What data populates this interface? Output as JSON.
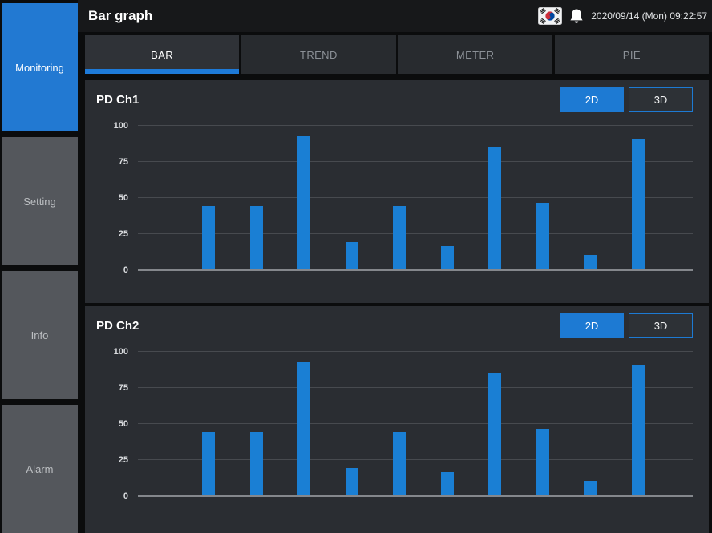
{
  "header": {
    "title": "Bar graph",
    "datetime": "2020/09/14 (Mon) 09:22:57",
    "icons": [
      "korea-flag-icon",
      "bell-icon"
    ]
  },
  "sidebar": {
    "items": [
      {
        "label": "Monitoring",
        "active": true
      },
      {
        "label": "Setting",
        "active": false
      },
      {
        "label": "Info",
        "active": false
      },
      {
        "label": "Alarm",
        "active": false
      }
    ]
  },
  "tabs": [
    {
      "label": "BAR",
      "active": true
    },
    {
      "label": "TREND",
      "active": false
    },
    {
      "label": "METER",
      "active": false
    },
    {
      "label": "PIE",
      "active": false
    }
  ],
  "colors": {
    "accent": "#1d7ad3",
    "bar": "#1a7fd4",
    "sidebar_active": "#2279d2",
    "panel_bg": "#2a2d32",
    "gridline": "#474a4f"
  },
  "chart_data": [
    {
      "type": "bar",
      "title": "PD Ch1",
      "values": [
        44,
        44,
        92,
        19,
        44,
        16,
        85,
        46,
        10,
        90
      ],
      "categories": [
        "",
        "",
        "",
        "",
        "",
        "",
        "",
        "",
        "",
        ""
      ],
      "ylim": [
        0,
        100
      ],
      "yticks": [
        100,
        75,
        50,
        25,
        0
      ],
      "grid": true,
      "legend": "none",
      "bar_color": "#1a7fd4",
      "buttons": [
        "2D",
        "3D"
      ],
      "active_button": "2D"
    },
    {
      "type": "bar",
      "title": "PD Ch2",
      "values": [
        44,
        44,
        92,
        19,
        44,
        16,
        85,
        46,
        10,
        90
      ],
      "categories": [
        "",
        "",
        "",
        "",
        "",
        "",
        "",
        "",
        "",
        ""
      ],
      "ylim": [
        0,
        100
      ],
      "yticks": [
        100,
        75,
        50,
        25,
        0
      ],
      "grid": true,
      "legend": "none",
      "bar_color": "#1a7fd4",
      "buttons": [
        "2D",
        "3D"
      ],
      "active_button": "2D"
    }
  ]
}
